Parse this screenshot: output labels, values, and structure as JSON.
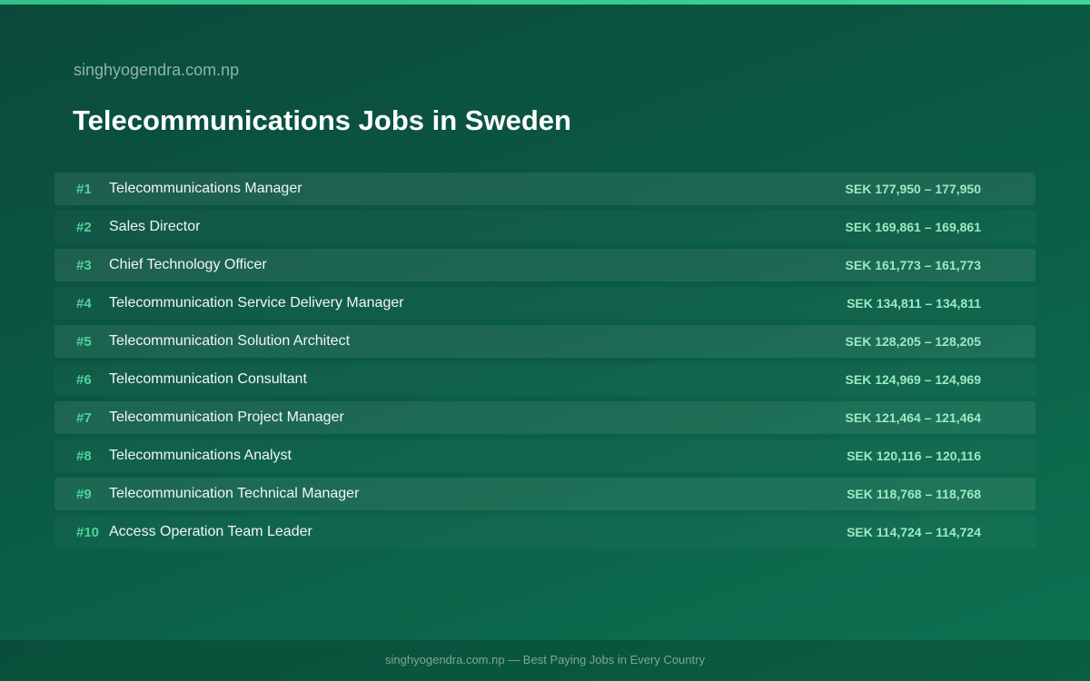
{
  "header": {
    "site": "singhyogendra.com.np",
    "title": "Telecommunications Jobs in Sweden"
  },
  "table": {
    "rows": [
      [
        "#1",
        "Telecommunications Manager",
        "SEK 177,950 – 177,950"
      ],
      [
        "#2",
        "Sales Director",
        "SEK 169,861 – 169,861"
      ],
      [
        "#3",
        "Chief Technology Officer",
        "SEK 161,773 – 161,773"
      ],
      [
        "#4",
        "Telecommunication Service Delivery Manager",
        "SEK 134,811 – 134,811"
      ],
      [
        "#5",
        "Telecommunication Solution Architect",
        "SEK 128,205 – 128,205"
      ],
      [
        "#6",
        "Telecommunication Consultant",
        "SEK 124,969 – 124,969"
      ],
      [
        "#7",
        "Telecommunication Project Manager",
        "SEK 121,464 – 121,464"
      ],
      [
        "#8",
        "Telecommunications Analyst",
        "SEK 120,116 – 120,116"
      ],
      [
        "#9",
        "Telecommunication Technical Manager",
        "SEK 118,768 – 118,768"
      ],
      [
        "#10",
        "Access Operation Team Leader",
        "SEK 114,724 – 114,724"
      ]
    ]
  },
  "footer": {
    "text": "singhyogendra.com.np — Best Paying Jobs in Every Country"
  }
}
